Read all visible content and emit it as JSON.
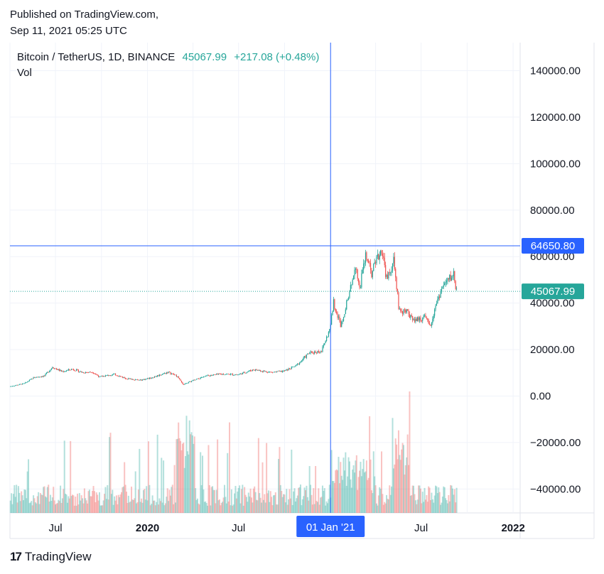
{
  "published": {
    "line1": "Published on TradingView.com,",
    "line2": "Sep 11, 2021 05:25 UTC"
  },
  "legend": {
    "symbol": "Bitcoin / TetherUS, 1D, BINANCE",
    "last": "45067.99",
    "change": "+217.08 (+0.48%)",
    "volume_label": "Vol"
  },
  "brand": {
    "logo": "17",
    "name": "TradingView"
  },
  "colors": {
    "up": "#26a69a",
    "down": "#ef5350",
    "crosshair": "#2962ff",
    "grid": "#f0f3fa",
    "axis_text": "#131722"
  },
  "crosshair": {
    "price_label": "64650.80",
    "price_value": 64650.8,
    "date_label": "01 Jan '21"
  },
  "last_price": {
    "label": "45067.99",
    "value": 45067.99
  },
  "chart_data": {
    "type": "candlestick",
    "symbol": "Bitcoin / TetherUS",
    "interval": "1D",
    "exchange": "BINANCE",
    "y_ticks": [
      140000,
      120000,
      100000,
      80000,
      60000,
      40000,
      20000,
      0,
      -20000,
      -40000
    ],
    "y_tick_labels": [
      "140000.00",
      "120000.00",
      "100000.00",
      "80000.00",
      "60000.00",
      "40000.00",
      "20000.00",
      "0.00",
      "−20000.00",
      "−40000.00"
    ],
    "ylim": [
      -50000,
      150000
    ],
    "x_range": [
      "2019-04-01",
      "2022-01-15"
    ],
    "x_ticks": [
      {
        "date": "2019-07-01",
        "label": "Jul",
        "bold": false
      },
      {
        "date": "2020-01-01",
        "label": "2020",
        "bold": true
      },
      {
        "date": "2020-07-01",
        "label": "Jul",
        "bold": false
      },
      {
        "date": "2021-07-01",
        "label": "Jul",
        "bold": false
      },
      {
        "date": "2022-01-01",
        "label": "2022",
        "bold": true
      }
    ],
    "price_path": [
      [
        "2019-04-01",
        4100
      ],
      [
        "2019-05-01",
        5400
      ],
      [
        "2019-05-20",
        8000
      ],
      [
        "2019-06-10",
        8700
      ],
      [
        "2019-06-26",
        12500
      ],
      [
        "2019-07-15",
        10500
      ],
      [
        "2019-08-05",
        11600
      ],
      [
        "2019-08-25",
        10200
      ],
      [
        "2019-09-15",
        10300
      ],
      [
        "2019-09-28",
        8200
      ],
      [
        "2019-10-27",
        9400
      ],
      [
        "2019-11-20",
        7600
      ],
      [
        "2019-12-18",
        6800
      ],
      [
        "2020-01-10",
        7900
      ],
      [
        "2020-02-12",
        10300
      ],
      [
        "2020-03-01",
        8600
      ],
      [
        "2020-03-13",
        4900
      ],
      [
        "2020-04-01",
        6600
      ],
      [
        "2020-05-01",
        8800
      ],
      [
        "2020-06-01",
        9500
      ],
      [
        "2020-07-01",
        9200
      ],
      [
        "2020-08-01",
        11400
      ],
      [
        "2020-09-05",
        10200
      ],
      [
        "2020-10-01",
        10700
      ],
      [
        "2020-10-25",
        13000
      ],
      [
        "2020-11-20",
        18500
      ],
      [
        "2020-12-15",
        19500
      ],
      [
        "2021-01-01",
        29000
      ],
      [
        "2021-01-08",
        40500
      ],
      [
        "2021-01-22",
        30500
      ],
      [
        "2021-02-10",
        45000
      ],
      [
        "2021-02-21",
        57000
      ],
      [
        "2021-03-01",
        46000
      ],
      [
        "2021-03-13",
        60500
      ],
      [
        "2021-03-25",
        52500
      ],
      [
        "2021-04-14",
        63500
      ],
      [
        "2021-04-25",
        49500
      ],
      [
        "2021-05-08",
        58500
      ],
      [
        "2021-05-19",
        37000
      ],
      [
        "2021-06-01",
        36500
      ],
      [
        "2021-06-22",
        32500
      ],
      [
        "2021-07-08",
        34000
      ],
      [
        "2021-07-20",
        29800
      ],
      [
        "2021-08-01",
        40000
      ],
      [
        "2021-08-14",
        47000
      ],
      [
        "2021-08-24",
        49500
      ],
      [
        "2021-09-06",
        52700
      ],
      [
        "2021-09-10",
        45068
      ]
    ],
    "volume": {
      "scale": "overlay",
      "note": "daily volume bars shown at bottom of pane"
    }
  }
}
